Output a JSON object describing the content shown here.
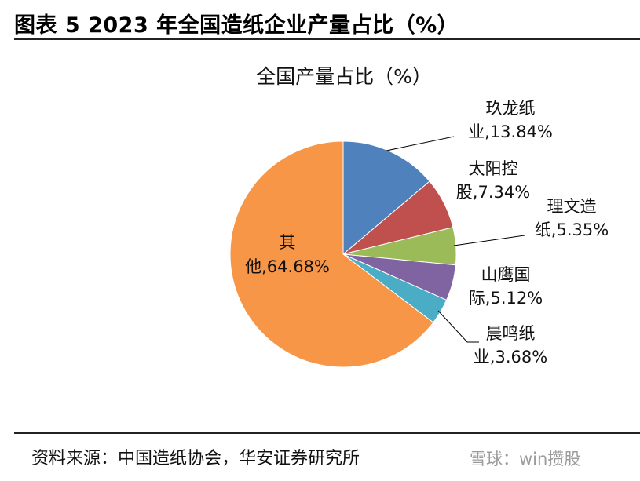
{
  "header": {
    "title": "图表 5 2023 年全国造纸企业产量占比（%）"
  },
  "footer": {
    "source": "资料来源：中国造纸协会，华安证券研究所",
    "watermark": "雪球：win攒股"
  },
  "chart_data": {
    "type": "pie",
    "title": "全国产量占比（%）",
    "slices": [
      {
        "name": "玖龙纸业",
        "value": 13.84,
        "color": "#4f81bd",
        "label_lines": [
          "玖龙纸",
          "业,13.84%"
        ]
      },
      {
        "name": "太阳控股",
        "value": 7.34,
        "color": "#c0504d",
        "label_lines": [
          "太阳控",
          "股,7.34%"
        ]
      },
      {
        "name": "理文造纸",
        "value": 5.35,
        "color": "#9bbb59",
        "label_lines": [
          "理文造",
          "纸,5.35%"
        ]
      },
      {
        "name": "山鹰国际",
        "value": 5.12,
        "color": "#8064a2",
        "label_lines": [
          "山鹰国",
          "际,5.12%"
        ]
      },
      {
        "name": "晨鸣纸业",
        "value": 3.68,
        "color": "#4bacc6",
        "label_lines": [
          "晨鸣纸",
          "业,3.68%"
        ]
      },
      {
        "name": "其他",
        "value": 64.68,
        "color": "#f79646",
        "label_lines": [
          "其",
          "他,64.68%"
        ]
      }
    ]
  }
}
